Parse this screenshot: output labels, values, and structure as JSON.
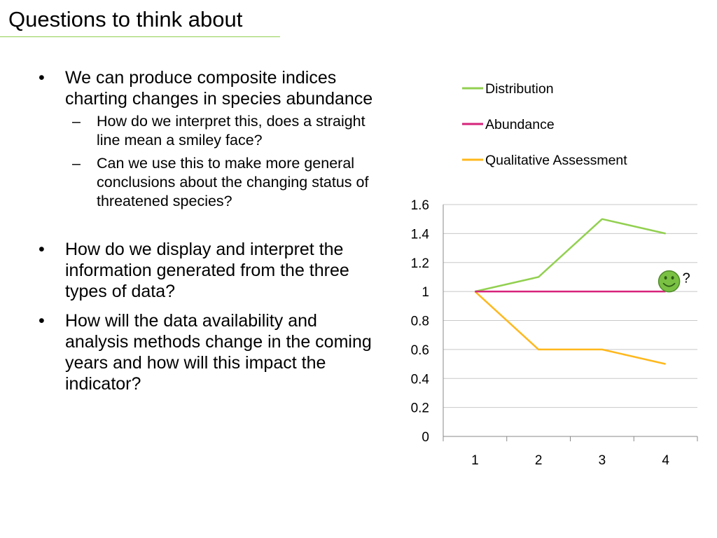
{
  "slide": {
    "title": "Questions to think about",
    "bullets": [
      {
        "text": "We can produce composite indices charting changes in species abundance",
        "sub": [
          "How do we interpret this, does a straight line mean a smiley face?",
          "Can we use this to make more general conclusions about the changing status of threatened species?"
        ]
      },
      {
        "text": "How do we display and interpret the information generated from the three types of data?",
        "sub": []
      },
      {
        "text": "How will the data availability and analysis methods change in the coming years and how will this impact the indicator?",
        "sub": []
      }
    ],
    "bullet_symbol": "•",
    "sub_bullet_symbol": "–"
  },
  "chart_data": {
    "type": "line",
    "categories": [
      "1",
      "2",
      "3",
      "4"
    ],
    "series": [
      {
        "name": "Distribution",
        "values": [
          1,
          1.1,
          1.5,
          1.4
        ],
        "color": "#92d050"
      },
      {
        "name": "Abundance",
        "values": [
          1,
          1,
          1,
          1
        ],
        "color": "#d6237a"
      },
      {
        "name": "Qualitative Assessment",
        "values": [
          1,
          0.6,
          0.6,
          0.5
        ],
        "color": "#ffb81c"
      }
    ],
    "yticks": [
      "0",
      "0.2",
      "0.4",
      "0.6",
      "0.8",
      "1",
      "1.2",
      "1.4",
      "1.6"
    ],
    "ylim": [
      0,
      1.6
    ],
    "grid": true,
    "legend": "top",
    "annotation": {
      "icon": "smiley-face-icon",
      "text": "?",
      "x": "4",
      "y": 1.07,
      "color": "#7ac143"
    }
  }
}
